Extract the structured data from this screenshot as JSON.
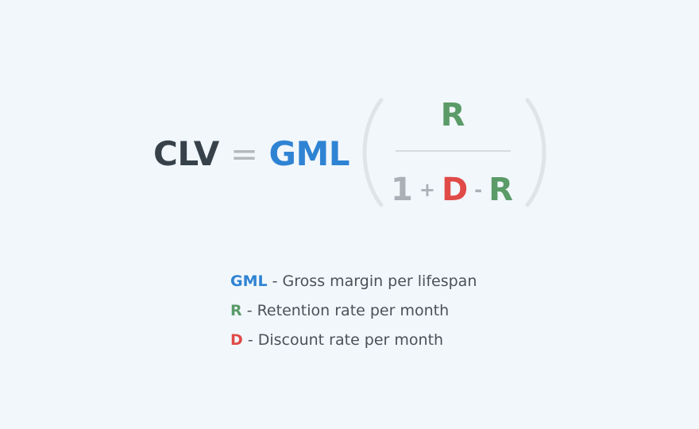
{
  "formula": {
    "lhs": "CLV",
    "equals": "=",
    "multiplier": "GML",
    "numerator": "R",
    "denominator": {
      "one": "1",
      "plus": "+",
      "d": "D",
      "minus": "-",
      "r": "R"
    }
  },
  "legend": [
    {
      "key": "GML",
      "description": "- Gross margin per lifespan"
    },
    {
      "key": "R",
      "description": "- Retention rate per month"
    },
    {
      "key": "D",
      "description": "- Discount rate per month"
    }
  ],
  "colors": {
    "background": "#f1f7fb",
    "clv": "#37414a",
    "gml": "#2f83d3",
    "retention": "#5a9b68",
    "discount": "#e04a47",
    "muted": "#a9b0b6"
  }
}
